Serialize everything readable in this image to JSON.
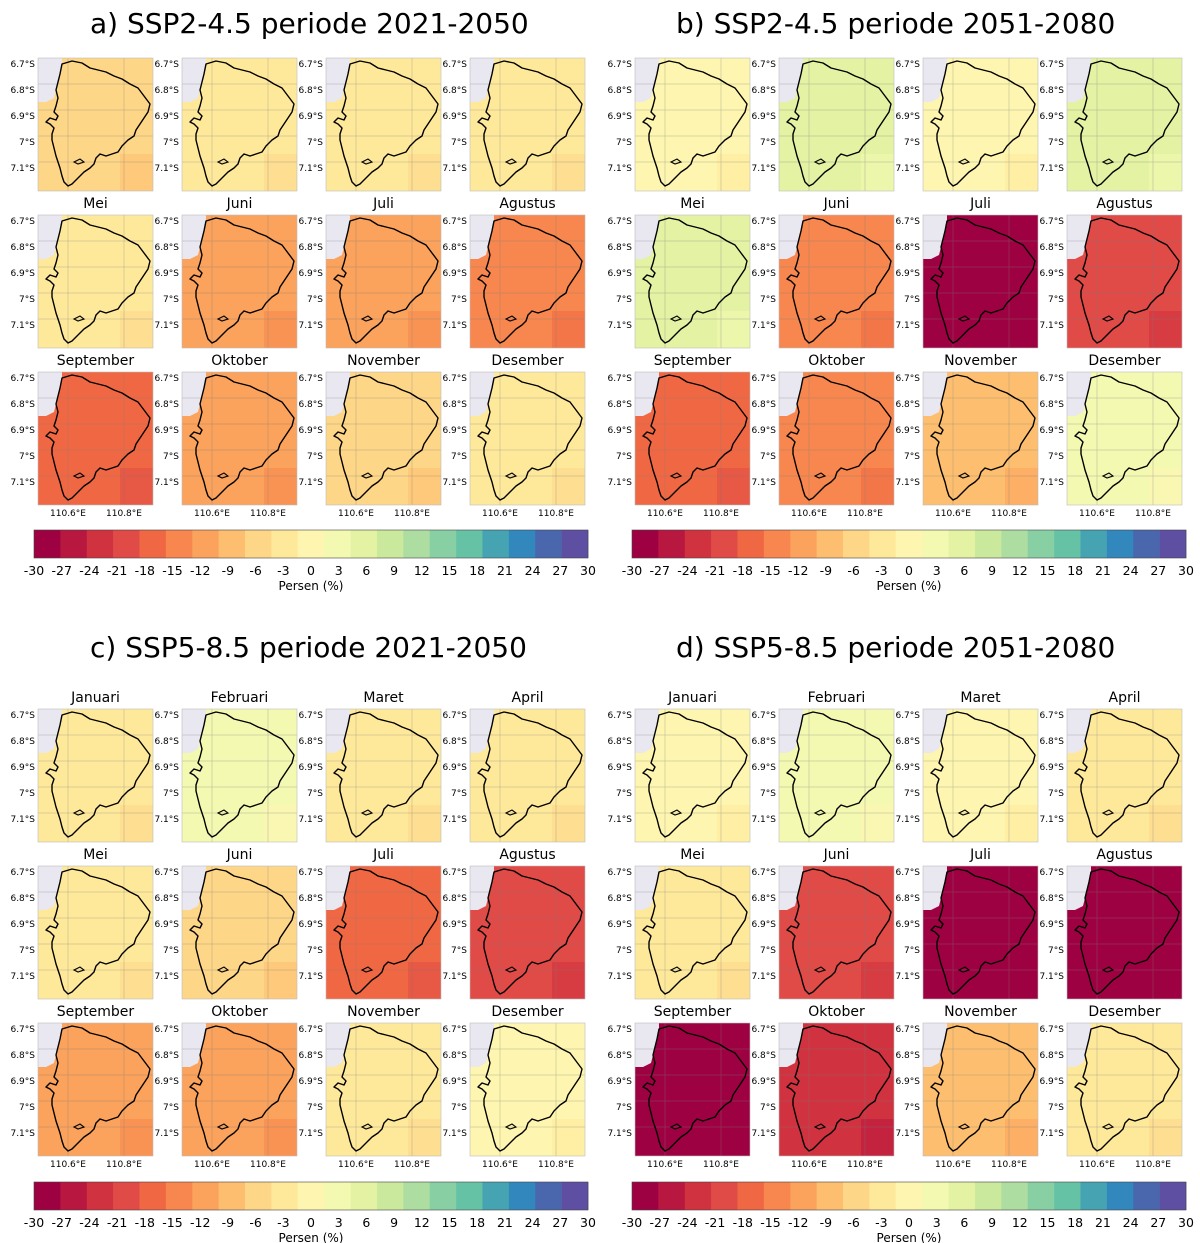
{
  "colorbar": {
    "ticks": [
      "-30",
      "-27",
      "-24",
      "-21",
      "-18",
      "-15",
      "-12",
      "-9",
      "-6",
      "-3",
      "0",
      "3",
      "6",
      "9",
      "12",
      "15",
      "18",
      "21",
      "24",
      "27",
      "30"
    ],
    "label": "Persen (%)",
    "colors": [
      "#9e0142",
      "#b8183f",
      "#d0323f",
      "#e04a47",
      "#f06843",
      "#f7874f",
      "#fba25c",
      "#fdbf6f",
      "#fed688",
      "#fee99b",
      "#fef6b0",
      "#f4f9b2",
      "#e3f3a3",
      "#cbe99d",
      "#aedda2",
      "#89cfa4",
      "#66c2a5",
      "#45a3b2",
      "#3288bd",
      "#4a67ad",
      "#5e4fa2"
    ]
  },
  "axes": {
    "lat_ticks": [
      "6.7°S",
      "6.8°S",
      "6.9°S",
      "7°S",
      "7.1°S"
    ],
    "lon_ticks": [
      "110.6°E",
      "110.8°E"
    ]
  },
  "panels": [
    {
      "label": "a)",
      "title": "SSP2-4.5 periode 2021-2050",
      "months": [
        {
          "name": "",
          "value": -6
        },
        {
          "name": "",
          "value": -2
        },
        {
          "name": "",
          "value": -1
        },
        {
          "name": "",
          "value": -2
        },
        {
          "name": "Mei",
          "value": -1
        },
        {
          "name": "Juni",
          "value": -11
        },
        {
          "name": "Juli",
          "value": -11
        },
        {
          "name": "Agustus",
          "value": -15
        },
        {
          "name": "September",
          "value": -16
        },
        {
          "name": "Oktober",
          "value": -11
        },
        {
          "name": "November",
          "value": -6
        },
        {
          "name": "Desember",
          "value": -2
        }
      ]
    },
    {
      "label": "b)",
      "title": "SSP2-4.5 periode 2051-2080",
      "months": [
        {
          "name": "",
          "value": 1
        },
        {
          "name": "",
          "value": 6
        },
        {
          "name": "",
          "value": 1
        },
        {
          "name": "",
          "value": 6
        },
        {
          "name": "Mei",
          "value": 7
        },
        {
          "name": "Juni",
          "value": -14
        },
        {
          "name": "Juli",
          "value": -30
        },
        {
          "name": "Agustus",
          "value": -20
        },
        {
          "name": "September",
          "value": -18
        },
        {
          "name": "Oktober",
          "value": -14
        },
        {
          "name": "November",
          "value": -8
        },
        {
          "name": "Desember",
          "value": 3
        }
      ]
    },
    {
      "label": "c)",
      "title": "SSP5-8.5 periode 2021-2050",
      "months": [
        {
          "name": "Januari",
          "value": -2
        },
        {
          "name": "Februari",
          "value": 4
        },
        {
          "name": "Maret",
          "value": -1
        },
        {
          "name": "April",
          "value": -3
        },
        {
          "name": "Mei",
          "value": -1
        },
        {
          "name": "Juni",
          "value": -6
        },
        {
          "name": "Juli",
          "value": -18
        },
        {
          "name": "Agustus",
          "value": -20
        },
        {
          "name": "September",
          "value": -12
        },
        {
          "name": "Oktober",
          "value": -12
        },
        {
          "name": "November",
          "value": -3
        },
        {
          "name": "Desember",
          "value": 0
        }
      ]
    },
    {
      "label": "d)",
      "title": "SSP5-8.5 periode 2051-2080",
      "months": [
        {
          "name": "Januari",
          "value": 2
        },
        {
          "name": "Februari",
          "value": 5
        },
        {
          "name": "Maret",
          "value": 1
        },
        {
          "name": "April",
          "value": -3
        },
        {
          "name": "Mei",
          "value": -3
        },
        {
          "name": "Juni",
          "value": -20
        },
        {
          "name": "Juli",
          "value": -30
        },
        {
          "name": "Agustus",
          "value": -30
        },
        {
          "name": "September",
          "value": -28
        },
        {
          "name": "Oktober",
          "value": -24
        },
        {
          "name": "November",
          "value": -9
        },
        {
          "name": "Desember",
          "value": -1
        }
      ]
    }
  ]
}
